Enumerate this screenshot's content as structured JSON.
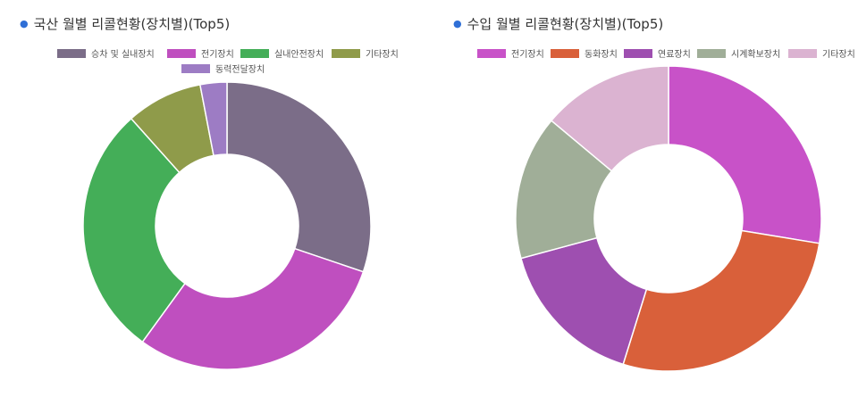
{
  "charts": [
    {
      "title": "국산 월별 리콜현황(장치별)(Top5)"
    },
    {
      "title": "수입 월별 리콜현황(장치별)(Top5)"
    }
  ],
  "chart_data": [
    {
      "type": "pie",
      "donut": true,
      "title": "국산 월별 리콜현황(장치별)(Top5)",
      "legend_position": "top",
      "categories": [
        "승차 및 실내장치",
        "전기장치",
        "실내안전장치",
        "기타장치",
        "동력전달장치"
      ],
      "values": [
        30.2,
        29.8,
        28.4,
        8.6,
        3.0
      ],
      "colors": [
        "#7b6d88",
        "#bf4fbf",
        "#44ae58",
        "#8f9b4a",
        "#9d7cc4"
      ]
    },
    {
      "type": "pie",
      "donut": true,
      "title": "수입 월별 리콜현황(장치별)(Top5)",
      "legend_position": "top",
      "categories": [
        "전기장치",
        "동화장치",
        "연료장치",
        "시계확보장치",
        "기타장치"
      ],
      "values": [
        27.6,
        27.2,
        16.0,
        15.3,
        13.9
      ],
      "colors": [
        "#c852c8",
        "#d9603a",
        "#9e4fb0",
        "#a0ae98",
        "#dbb3d1"
      ]
    }
  ]
}
